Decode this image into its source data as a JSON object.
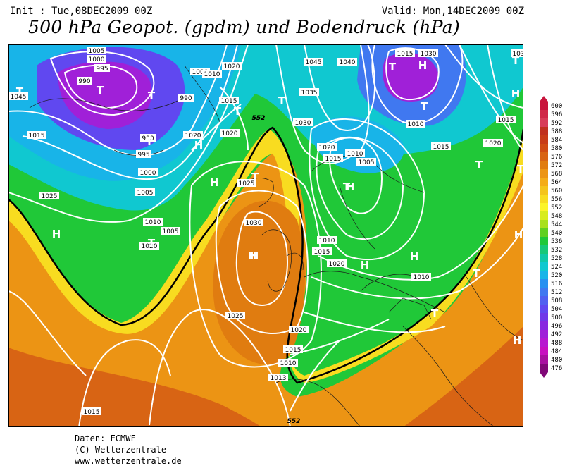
{
  "header": {
    "init": "Init : Tue,08DEC2009 00Z",
    "valid": "Valid: Mon,14DEC2009 00Z",
    "title": "500 hPa Geopot. (gpdm) und Bodendruck (hPa)"
  },
  "footer": {
    "line1": "Daten: ECMWF",
    "line2": "(C) Wetterzentrale",
    "line3": "www.wetterzentrale.de"
  },
  "legend": {
    "values": [
      "600",
      "596",
      "592",
      "588",
      "584",
      "580",
      "576",
      "572",
      "568",
      "564",
      "560",
      "556",
      "552",
      "548",
      "544",
      "540",
      "536",
      "532",
      "528",
      "524",
      "520",
      "516",
      "512",
      "508",
      "504",
      "500",
      "496",
      "492",
      "488",
      "484",
      "480",
      "476"
    ],
    "colors": [
      "#c8143c",
      "#d02848",
      "#d83c58",
      "#c0301e",
      "#c83c18",
      "#d04c14",
      "#d86414",
      "#e07c10",
      "#ec9414",
      "#f4ac18",
      "#f4c41c",
      "#f8dc20",
      "#fcf428",
      "#d8ec1c",
      "#a8e01c",
      "#60d020",
      "#20c838",
      "#18c878",
      "#10c8a8",
      "#10c8d0",
      "#18b4e8",
      "#2890f0",
      "#4078f0",
      "#5060f0",
      "#6048f0",
      "#7038e8",
      "#8828e0",
      "#a020d8",
      "#b818d0",
      "#c810c0",
      "#a810a0",
      "#800878"
    ]
  },
  "map": {
    "isobar_labels": [
      {
        "text": "1005"
      },
      {
        "text": "1000"
      },
      {
        "text": "995"
      },
      {
        "text": "990"
      },
      {
        "text": "1045"
      },
      {
        "text": "1000"
      },
      {
        "text": "1010"
      },
      {
        "text": "1020"
      },
      {
        "text": "1015"
      },
      {
        "text": "990"
      },
      {
        "text": "1015"
      },
      {
        "text": "990"
      },
      {
        "text": "995"
      },
      {
        "text": "1000"
      },
      {
        "text": "1005"
      },
      {
        "text": "1020"
      },
      {
        "text": "1020"
      },
      {
        "text": "552"
      },
      {
        "text": "1025"
      },
      {
        "text": "1010"
      },
      {
        "text": "1005"
      },
      {
        "text": "1020"
      },
      {
        "text": "1030"
      },
      {
        "text": "1025"
      },
      {
        "text": "1010"
      },
      {
        "text": "1045"
      },
      {
        "text": "1040"
      },
      {
        "text": "1035"
      },
      {
        "text": "1030"
      },
      {
        "text": "1020"
      },
      {
        "text": "1015"
      },
      {
        "text": "1010"
      },
      {
        "text": "1005"
      },
      {
        "text": "1015"
      },
      {
        "text": "1020"
      },
      {
        "text": "1010"
      },
      {
        "text": "1015"
      },
      {
        "text": "1020"
      },
      {
        "text": "1015"
      },
      {
        "text": "1010"
      },
      {
        "text": "1013"
      },
      {
        "text": "1015"
      },
      {
        "text": "1010"
      },
      {
        "text": "1015"
      },
      {
        "text": "1020"
      },
      {
        "text": "1025"
      },
      {
        "text": "1030"
      },
      {
        "text": "1015"
      },
      {
        "text": "103"
      },
      {
        "text": "552"
      },
      {
        "text": "552"
      }
    ],
    "pressure_centers": [
      {
        "symbol": "T"
      },
      {
        "symbol": "T"
      },
      {
        "symbol": "T"
      },
      {
        "symbol": "T"
      },
      {
        "symbol": "H"
      },
      {
        "symbol": "T"
      },
      {
        "symbol": "T"
      },
      {
        "symbol": "T"
      },
      {
        "symbol": "H"
      },
      {
        "symbol": "H"
      },
      {
        "symbol": "T"
      },
      {
        "symbol": "H"
      },
      {
        "symbol": "T"
      },
      {
        "symbol": "T"
      },
      {
        "symbol": "T"
      },
      {
        "symbol": "T"
      },
      {
        "symbol": "T"
      },
      {
        "symbol": "H"
      },
      {
        "symbol": "H"
      },
      {
        "symbol": "H"
      },
      {
        "symbol": "H"
      },
      {
        "symbol": "T"
      },
      {
        "symbol": "T"
      },
      {
        "symbol": "H"
      },
      {
        "symbol": "T"
      },
      {
        "symbol": "H"
      },
      {
        "symbol": "H"
      },
      {
        "symbol": "H"
      }
    ]
  }
}
